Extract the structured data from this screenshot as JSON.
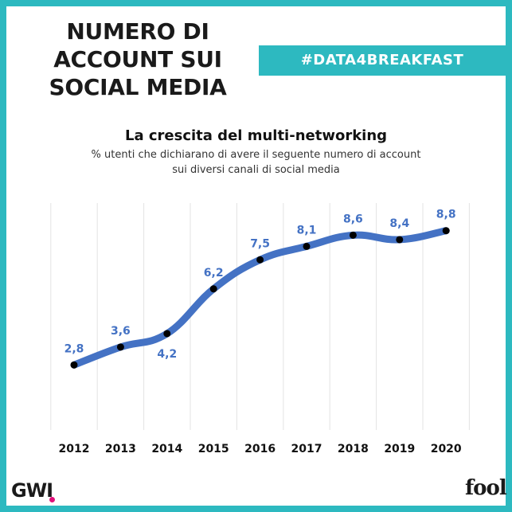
{
  "header": {
    "title": "NUMERO DI ACCOUNT SUI SOCIAL MEDIA",
    "hashtag": "#DATA4BREAKFAST"
  },
  "chart_data": {
    "type": "line",
    "title": "La crescita del multi-networking",
    "subtitle": "% utenti che dichiarano di avere il seguente numero di account sui diversi canali di social media",
    "categories": [
      "2012",
      "2013",
      "2014",
      "2015",
      "2016",
      "2017",
      "2018",
      "2019",
      "2020"
    ],
    "values": [
      2.8,
      3.6,
      4.2,
      6.2,
      7.5,
      8.1,
      8.6,
      8.4,
      8.8
    ],
    "data_labels": [
      "2,8",
      "3,6",
      "4,2",
      "6,2",
      "7,5",
      "8,1",
      "8,6",
      "8,4",
      "8,8"
    ],
    "line_color": "#4472c4",
    "label_color": "#4472c4",
    "point_color": "#000000",
    "grid": "vertical",
    "ylim": [
      0,
      10
    ]
  },
  "footer": {
    "logo_left": "GWI",
    "logo_right": "fool"
  },
  "colors": {
    "accent": "#2db9c0",
    "brand_dot": "#e0107a"
  }
}
